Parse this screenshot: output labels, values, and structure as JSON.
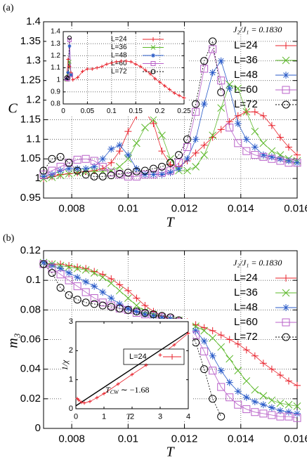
{
  "chart_data": [
    {
      "type": "line",
      "panel_label": "(a)",
      "xlabel": "T",
      "ylabel": "C",
      "annotation": "J₂/J₁ = 0.1830",
      "grid": true,
      "xlim": [
        0.007,
        0.016
      ],
      "xticks": [
        0.008,
        0.01,
        0.012,
        0.014,
        0.016
      ],
      "ylim": [
        0.95,
        1.4
      ],
      "yticks": [
        0.95,
        1,
        1.05,
        1.1,
        1.15,
        1.2,
        1.25,
        1.3,
        1.35,
        1.4
      ],
      "x": [
        0.007,
        0.0073,
        0.0076,
        0.0079,
        0.0082,
        0.0085,
        0.0088,
        0.0091,
        0.0094,
        0.0097,
        0.01,
        0.0103,
        0.0106,
        0.0109,
        0.0112,
        0.0115,
        0.0118,
        0.0121,
        0.0124,
        0.0127,
        0.013,
        0.0133,
        0.0136,
        0.0139,
        0.0142,
        0.0145,
        0.0148,
        0.0151,
        0.0154,
        0.0157,
        0.016
      ],
      "series": [
        {
          "name": "L=24",
          "color": "#e8202a",
          "marker": "plus",
          "values": [
            1.0,
            1.005,
            1.01,
            1.012,
            1.015,
            1.018,
            1.02,
            1.025,
            1.04,
            1.07,
            1.12,
            1.16,
            1.17,
            1.14,
            1.07,
            1.035,
            1.03,
            1.045,
            1.065,
            1.085,
            1.105,
            1.125,
            1.145,
            1.16,
            1.17,
            1.17,
            1.16,
            1.135,
            1.105,
            1.08,
            1.06
          ]
        },
        {
          "name": "L=36",
          "color": "#5cb82a",
          "marker": "cross",
          "values": [
            1.0,
            1.003,
            1.008,
            1.012,
            1.015,
            1.017,
            1.018,
            1.018,
            1.02,
            1.03,
            1.05,
            1.09,
            1.13,
            1.15,
            1.11,
            1.05,
            1.02,
            1.02,
            1.03,
            1.06,
            1.11,
            1.18,
            1.24,
            1.23,
            1.17,
            1.12,
            1.09,
            1.07,
            1.06,
            1.05,
            1.045
          ]
        },
        {
          "name": "L=48",
          "color": "#2a5bc8",
          "marker": "star",
          "values": [
            1.005,
            1.01,
            1.02,
            1.025,
            1.025,
            1.025,
            1.03,
            1.05,
            1.075,
            1.085,
            1.06,
            1.025,
            1.01,
            1.01,
            1.01,
            1.015,
            1.025,
            1.05,
            1.1,
            1.19,
            1.27,
            1.3,
            1.23,
            1.14,
            1.1,
            1.08,
            1.06,
            1.055,
            1.05,
            1.045,
            1.04
          ]
        },
        {
          "name": "L=60",
          "color": "#b860c8",
          "marker": "square",
          "values": [
            1.01,
            1.02,
            1.03,
            1.04,
            1.048,
            1.05,
            1.045,
            1.03,
            1.015,
            1.01,
            1.005,
            1.005,
            1.01,
            1.01,
            1.015,
            1.02,
            1.04,
            1.08,
            1.17,
            1.28,
            1.33,
            1.25,
            1.13,
            1.09,
            1.07,
            1.06,
            1.055,
            1.05,
            1.045,
            1.04,
            1.04
          ]
        },
        {
          "name": "L=72",
          "color": "#000000",
          "marker": "circle",
          "line_style": "dotted",
          "values": [
            1.02,
            1.05,
            1.055,
            1.04,
            1.02,
            1.01,
            1.005,
            1.005,
            1.008,
            1.012,
            1.015,
            1.018,
            1.02,
            1.025,
            1.03,
            1.04,
            1.06,
            1.1,
            1.19,
            1.3,
            1.35,
            1.22,
            null,
            null,
            null,
            null,
            null,
            null,
            null,
            null,
            null
          ]
        }
      ]
    },
    {
      "type": "line",
      "grid": true,
      "xlim": [
        0,
        0.25
      ],
      "xticks": [
        0,
        0.05,
        0.1,
        0.15,
        0.2,
        0.25
      ],
      "ylim": [
        0.8,
        1.4
      ],
      "yticks": [
        0.8,
        0.9,
        1,
        1.1,
        1.2,
        1.3,
        1.4
      ],
      "x": [
        0.007,
        0.01,
        0.013,
        0.016,
        0.02,
        0.03,
        0.04,
        0.05,
        0.06,
        0.07,
        0.08,
        0.09,
        0.1,
        0.11,
        0.12,
        0.13,
        0.14,
        0.15,
        0.16,
        0.17,
        0.18,
        0.19,
        0.2,
        0.21,
        0.22,
        0.23,
        0.24,
        0.25
      ],
      "series": [
        {
          "name": "L=24",
          "color": "#e8202a",
          "marker": "plus",
          "values": [
            1.0,
            1.17,
            1.11,
            1.06,
            1.0,
            1.02,
            1.07,
            1.09,
            1.09,
            1.1,
            1.11,
            1.13,
            1.14,
            1.15,
            1.155,
            1.155,
            1.15,
            1.13,
            1.11,
            1.08,
            1.05,
            1.01,
            0.98,
            0.95,
            0.92,
            0.89,
            0.87,
            0.85
          ]
        },
        {
          "name": "L=36",
          "color": "#5cb82a",
          "marker": "cross",
          "values": [
            1.0,
            1.05,
            1.15,
            1.045,
            null,
            null,
            null,
            null,
            null,
            null,
            null,
            null,
            null,
            null,
            null,
            null,
            null,
            null,
            null,
            null,
            null,
            null,
            null,
            null,
            null,
            null,
            null,
            null
          ]
        },
        {
          "name": "L=48",
          "color": "#2a5bc8",
          "marker": "star",
          "values": [
            1.005,
            1.06,
            1.28,
            1.04,
            null,
            null,
            null,
            null,
            null,
            null,
            null,
            null,
            null,
            null,
            null,
            null,
            null,
            null,
            null,
            null,
            null,
            null,
            null,
            null,
            null,
            null,
            null,
            null
          ]
        },
        {
          "name": "L=60",
          "color": "#b860c8",
          "marker": "square",
          "values": [
            1.01,
            1.005,
            1.33,
            1.04,
            null,
            null,
            null,
            null,
            null,
            null,
            null,
            null,
            null,
            null,
            null,
            null,
            null,
            null,
            null,
            null,
            null,
            null,
            null,
            null,
            null,
            null,
            null,
            null
          ]
        },
        {
          "name": "L=72",
          "color": "#000000",
          "marker": "circle",
          "line_style": "dotted",
          "values": [
            1.02,
            1.015,
            1.35,
            null,
            null,
            null,
            null,
            null,
            null,
            null,
            null,
            null,
            null,
            null,
            null,
            null,
            null,
            null,
            null,
            null,
            null,
            null,
            null,
            null,
            null,
            null,
            null,
            null
          ]
        }
      ]
    },
    {
      "type": "line",
      "panel_label": "(b)",
      "xlabel": "T",
      "ylabel": "m₃",
      "annotation": "J₂/J₁ = 0.1830",
      "grid": true,
      "xlim": [
        0.007,
        0.016
      ],
      "xticks": [
        0.008,
        0.01,
        0.012,
        0.014,
        0.016
      ],
      "ylim": [
        0,
        0.12
      ],
      "yticks": [
        0,
        0.02,
        0.04,
        0.06,
        0.08,
        0.1,
        0.12
      ],
      "x": [
        0.007,
        0.0073,
        0.0076,
        0.0079,
        0.0082,
        0.0085,
        0.0088,
        0.0091,
        0.0094,
        0.0097,
        0.01,
        0.0103,
        0.0106,
        0.0109,
        0.0112,
        0.0115,
        0.0118,
        0.0121,
        0.0124,
        0.0127,
        0.013,
        0.0133,
        0.0136,
        0.0139,
        0.0142,
        0.0145,
        0.0148,
        0.0151,
        0.0154,
        0.0157,
        0.016
      ],
      "series": [
        {
          "name": "L=24",
          "color": "#e8202a",
          "marker": "plus",
          "values": [
            0.112,
            0.111,
            0.111,
            0.11,
            0.109,
            0.108,
            0.106,
            0.104,
            0.101,
            0.097,
            0.093,
            0.088,
            0.083,
            0.079,
            0.076,
            0.074,
            0.073,
            0.072,
            0.07,
            0.068,
            0.066,
            0.063,
            0.06,
            0.057,
            0.053,
            0.049,
            0.044,
            0.04,
            0.036,
            0.032,
            0.029
          ]
        },
        {
          "name": "L=36",
          "color": "#5cb82a",
          "marker": "cross",
          "values": [
            0.112,
            0.111,
            0.11,
            0.109,
            0.108,
            0.107,
            0.105,
            0.102,
            0.098,
            0.093,
            0.088,
            0.083,
            0.079,
            0.077,
            0.075,
            0.074,
            0.073,
            0.071,
            0.069,
            0.066,
            0.061,
            0.055,
            0.047,
            0.039,
            0.032,
            0.026,
            0.022,
            0.019,
            0.017,
            0.016,
            0.015
          ]
        },
        {
          "name": "L=48",
          "color": "#2a5bc8",
          "marker": "star",
          "values": [
            0.112,
            0.11,
            0.108,
            0.105,
            0.102,
            0.099,
            0.096,
            0.092,
            0.088,
            0.084,
            0.081,
            0.079,
            0.077,
            0.076,
            0.075,
            0.074,
            0.072,
            0.07,
            0.066,
            0.059,
            0.049,
            0.039,
            0.031,
            0.025,
            0.021,
            0.018,
            0.016,
            0.014,
            0.012,
            0.011,
            0.01
          ]
        },
        {
          "name": "L=60",
          "color": "#b860c8",
          "marker": "square",
          "values": [
            0.111,
            0.108,
            0.104,
            0.1,
            0.096,
            0.092,
            0.088,
            0.085,
            0.083,
            0.081,
            0.08,
            0.078,
            0.077,
            0.076,
            0.075,
            0.074,
            0.072,
            0.069,
            0.063,
            0.052,
            0.039,
            0.028,
            0.021,
            0.016,
            0.013,
            0.011,
            0.01,
            0.009,
            0.008,
            0.008,
            0.007
          ]
        },
        {
          "name": "L=72",
          "color": "#000000",
          "marker": "circle",
          "line_style": "dotted",
          "values": [
            0.111,
            0.105,
            0.095,
            0.09,
            0.087,
            0.085,
            0.084,
            0.083,
            0.082,
            0.081,
            0.08,
            0.079,
            0.078,
            0.077,
            0.076,
            0.075,
            0.073,
            0.069,
            0.058,
            0.04,
            0.02,
            0.008,
            null,
            null,
            null,
            null,
            null,
            null,
            null,
            null,
            null
          ]
        }
      ]
    },
    {
      "type": "line",
      "xlabel": "T",
      "ylabel": "1/χ",
      "annotation": [
        "T",
        "CW",
        " ∼ −1.68"
      ],
      "grid": false,
      "xlim": [
        0,
        4
      ],
      "xticks": [
        0,
        1,
        2,
        3,
        4
      ],
      "ylim": [
        0,
        3
      ],
      "yticks": [
        0,
        1,
        2,
        3
      ],
      "series": [
        {
          "name": "L=24",
          "color": "#e8202a",
          "marker": "plus",
          "x": [
            0.05,
            0.1,
            0.2,
            0.3,
            0.5,
            0.75,
            1,
            1.5,
            2,
            2.5,
            3,
            3.5,
            4
          ],
          "values": [
            0.35,
            0.3,
            0.22,
            0.2,
            0.25,
            0.38,
            0.52,
            0.85,
            1.18,
            1.5,
            1.85,
            2.2,
            2.6
          ]
        },
        {
          "color": "#000000",
          "marker": "none",
          "x": [
            0,
            4
          ],
          "values": [
            0.1,
            2.65
          ]
        }
      ]
    }
  ]
}
